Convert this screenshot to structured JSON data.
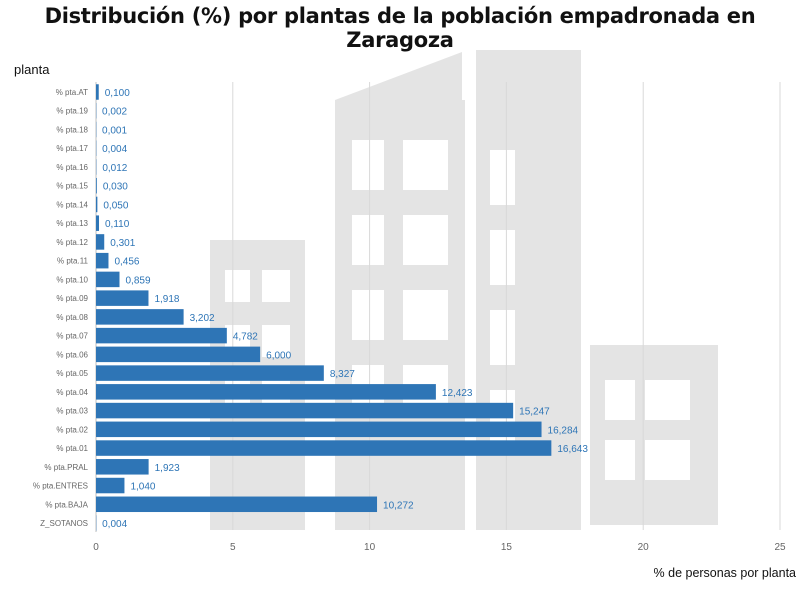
{
  "chart_data": {
    "type": "bar",
    "orientation": "horizontal",
    "title": "Distribución (%) por plantas de la población empadronada en Zaragoza",
    "ylabel": "planta",
    "xlabel": "% de personas por planta",
    "xlim": [
      0,
      25
    ],
    "xticks": [
      0,
      5,
      10,
      15,
      20,
      25
    ],
    "grid": "vertical",
    "bar_color": "#2E75B6",
    "label_color": "#2E75B6",
    "background": "building watermark",
    "categories": [
      "% pta.AT",
      "% pta.19",
      "% pta.18",
      "% pta.17",
      "% pta.16",
      "% pta.15",
      "% pta.14",
      "% pta.13",
      "% pta.12",
      "% pta.11",
      "% pta.10",
      "% pta.09",
      "% pta.08",
      "% pta.07",
      "% pta.06",
      "% pta.05",
      "% pta.04",
      "% pta.03",
      "% pta.02",
      "% pta.01",
      "% pta.PRAL",
      "% pta.ENTRES",
      "% pta.BAJA",
      "Z_SOTANOS"
    ],
    "values": [
      0.1,
      0.002,
      0.001,
      0.004,
      0.012,
      0.03,
      0.05,
      0.11,
      0.301,
      0.456,
      0.859,
      1.918,
      3.202,
      4.782,
      6.0,
      8.327,
      12.423,
      15.247,
      16.284,
      16.643,
      1.923,
      1.04,
      10.272,
      0.004
    ],
    "data_labels": [
      "0,100",
      "0,002",
      "0,001",
      "0,004",
      "0,012",
      "0,030",
      "0,050",
      "0,110",
      "0,301",
      "0,456",
      "0,859",
      "1,918",
      "3,202",
      "4,782",
      "6,000",
      "8,327",
      "12,423",
      "15,247",
      "16,284",
      "16,643",
      "1,923",
      "1,040",
      "10,272",
      "0,004"
    ]
  }
}
